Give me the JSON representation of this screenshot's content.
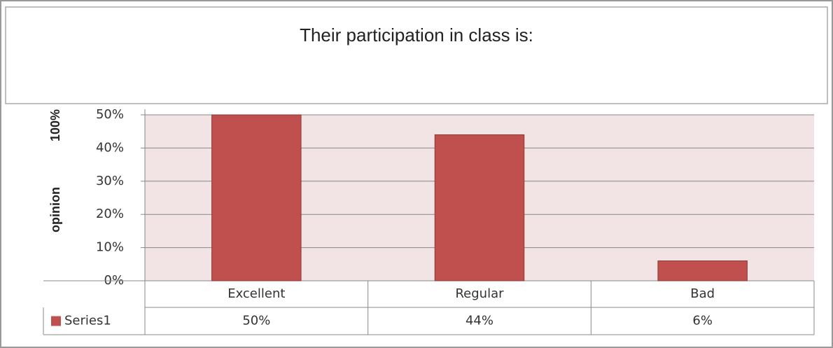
{
  "chart_data": {
    "type": "bar",
    "title": "Their participation in class is:",
    "ylabel": "opinion 100%",
    "categories": [
      "Excellent",
      "Regular",
      "Bad"
    ],
    "series": [
      {
        "name": "Series1",
        "color": "#c0504d",
        "values": [
          50,
          44,
          6
        ],
        "value_labels": [
          "50%",
          "44%",
          "6%"
        ]
      }
    ],
    "ylim": [
      0,
      50
    ],
    "yticks": [
      {
        "value": 0,
        "label": "0%"
      },
      {
        "value": 10,
        "label": "10%"
      },
      {
        "value": 20,
        "label": "20%"
      },
      {
        "value": 30,
        "label": "30%"
      },
      {
        "value": 40,
        "label": "40%"
      },
      {
        "value": 50,
        "label": "50%"
      }
    ],
    "grid": true
  }
}
